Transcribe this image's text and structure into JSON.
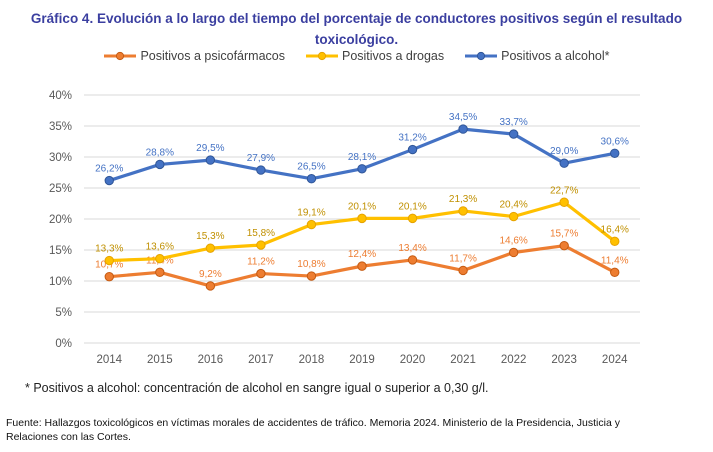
{
  "title": {
    "line1": "Gráfico 4. Evolución a lo largo del tiempo del porcentaje de conductores positivos según el resultado",
    "line2": "toxicológico."
  },
  "footnote": "* Positivos a alcohol: concentración de alcohol en sangre igual o superior a 0,30 g/l.",
  "source": {
    "line1": "Fuente: Hallazgos toxicológicos en víctimas morales de accidentes de tráfico. Memoria 2024. Ministerio de la Presidencia, Justicia y",
    "line2": "Relaciones con las Cortes."
  },
  "chart_data": {
    "type": "line",
    "title": "Gráfico 4. Evolución a lo largo del tiempo del porcentaje de conductores positivos según el resultado toxicológico.",
    "xlabel": "",
    "ylabel": "",
    "x": [
      "2014",
      "2015",
      "2016",
      "2017",
      "2018",
      "2019",
      "2020",
      "2021",
      "2022",
      "2023",
      "2024"
    ],
    "ylim": [
      0,
      40
    ],
    "yticks": [
      0,
      5,
      10,
      15,
      20,
      25,
      30,
      35,
      40
    ],
    "ytick_labels": [
      "0%",
      "5%",
      "10%",
      "15%",
      "20%",
      "25%",
      "30%",
      "35%",
      "40%"
    ],
    "grid": true,
    "legend_position": "top-center",
    "series": [
      {
        "name": "Positivos a psicofármacos",
        "color": "#ed7d31",
        "values": [
          10.7,
          11.4,
          9.2,
          11.2,
          10.8,
          12.4,
          13.4,
          11.7,
          14.6,
          15.7,
          11.4
        ],
        "labels": [
          "10,7%",
          "11,4%",
          "9,2%",
          "11,2%",
          "10,8%",
          "12,4%",
          "13,4%",
          "11,7%",
          "14,6%",
          "15,7%",
          "11,4%"
        ]
      },
      {
        "name": "Positivos a drogas",
        "color": "#ffc000",
        "label_color": "#c09000",
        "values": [
          13.3,
          13.6,
          15.3,
          15.8,
          19.1,
          20.1,
          20.1,
          21.3,
          20.4,
          22.7,
          16.4
        ],
        "labels": [
          "13,3%",
          "13,6%",
          "15,3%",
          "15,8%",
          "19,1%",
          "20,1%",
          "20,1%",
          "21,3%",
          "20,4%",
          "22,7%",
          "16,4%"
        ]
      },
      {
        "name": "Positivos a alcohol*",
        "color": "#4472c4",
        "values": [
          26.2,
          28.8,
          29.5,
          27.9,
          26.5,
          28.1,
          31.2,
          34.5,
          33.7,
          29.0,
          30.6
        ],
        "labels": [
          "26,2%",
          "28,8%",
          "29,5%",
          "27,9%",
          "26,5%",
          "28,1%",
          "31,2%",
          "34,5%",
          "33,7%",
          "29,0%",
          "30,6%"
        ]
      }
    ]
  }
}
